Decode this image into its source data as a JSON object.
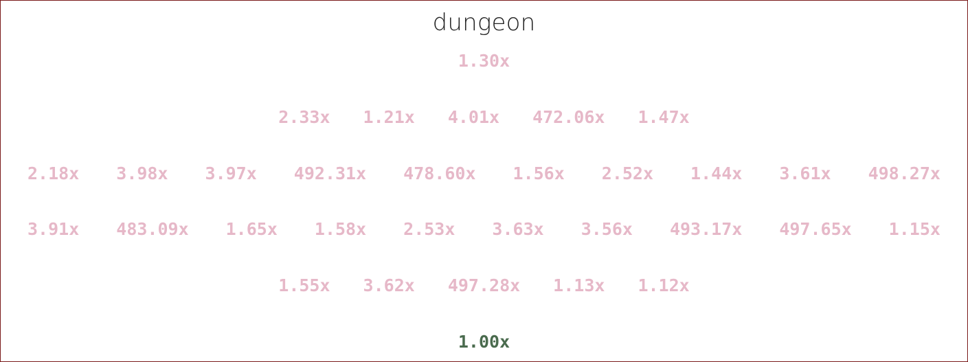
{
  "title": "dungeon",
  "colors": {
    "value": "#e6b8c8",
    "base": "#4a6b4e",
    "border": "#7a1a1a"
  },
  "rows": [
    [
      "1.30x"
    ],
    [
      "2.33x",
      "1.21x",
      "4.01x",
      "472.06x",
      "1.47x"
    ],
    [
      "2.18x",
      "3.98x",
      "3.97x",
      "492.31x",
      "478.60x",
      "1.56x",
      "2.52x",
      "1.44x",
      "3.61x",
      "498.27x"
    ],
    [
      "3.91x",
      "483.09x",
      "1.65x",
      "1.58x",
      "2.53x",
      "3.63x",
      "3.56x",
      "493.17x",
      "497.65x",
      "1.15x"
    ],
    [
      "1.55x",
      "3.62x",
      "497.28x",
      "1.13x",
      "1.12x"
    ],
    [
      "1.00x"
    ]
  ]
}
